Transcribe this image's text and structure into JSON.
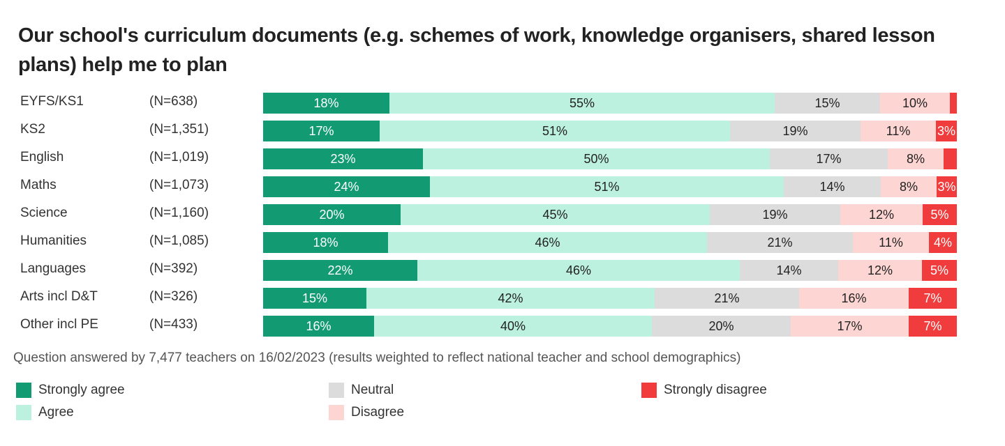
{
  "title": "Our school's curriculum documents (e.g. schemes of work, knowledge organisers, shared lesson plans) help me to plan",
  "note": "Question answered by 7,477 teachers on 16/02/2023 (results weighted to reflect national teacher and school demographics)",
  "colors": {
    "strongly_agree": "#129b73",
    "agree": "#bcf0df",
    "neutral": "#dcdcdc",
    "disagree": "#fdd5d3",
    "strongly_disagree": "#f03c3c"
  },
  "chart_data": {
    "type": "bar",
    "orientation": "horizontal-stacked-100",
    "title": "Our school's curriculum documents (e.g. schemes of work, knowledge organisers, shared lesson plans) help me to plan",
    "categories": [
      "EYFS/KS1",
      "KS2",
      "English",
      "Maths",
      "Science",
      "Humanities",
      "Languages",
      "Arts incl D&T",
      "Other incl PE"
    ],
    "n_labels": [
      "(N=638)",
      "(N=1,351)",
      "(N=1,019)",
      "(N=1,073)",
      "(N=1,160)",
      "(N=1,085)",
      "(N=392)",
      "(N=326)",
      "(N=433)"
    ],
    "series": [
      {
        "name": "Strongly agree",
        "key": "strongly_agree",
        "values": [
          18,
          17,
          23,
          24,
          20,
          18,
          22,
          15,
          16
        ],
        "labels": [
          "18%",
          "17%",
          "23%",
          "24%",
          "20%",
          "18%",
          "22%",
          "15%",
          "16%"
        ]
      },
      {
        "name": "Agree",
        "key": "agree",
        "values": [
          55,
          51,
          50,
          51,
          45,
          46,
          46,
          42,
          40
        ],
        "labels": [
          "55%",
          "51%",
          "50%",
          "51%",
          "45%",
          "46%",
          "46%",
          "42%",
          "40%"
        ]
      },
      {
        "name": "Neutral",
        "key": "neutral",
        "values": [
          15,
          19,
          17,
          14,
          19,
          21,
          14,
          21,
          20
        ],
        "labels": [
          "15%",
          "19%",
          "17%",
          "14%",
          "19%",
          "21%",
          "14%",
          "21%",
          "20%"
        ]
      },
      {
        "name": "Disagree",
        "key": "disagree",
        "values": [
          10,
          11,
          8,
          8,
          12,
          11,
          12,
          16,
          17
        ],
        "labels": [
          "10%",
          "11%",
          "8%",
          "8%",
          "12%",
          "11%",
          "12%",
          "16%",
          "17%"
        ]
      },
      {
        "name": "Strongly disagree",
        "key": "strongly_disagree",
        "values": [
          1,
          3,
          2,
          3,
          5,
          4,
          5,
          7,
          7
        ],
        "labels": [
          "",
          "3%",
          "",
          "3%",
          "5%",
          "4%",
          "5%",
          "7%",
          "7%"
        ]
      }
    ],
    "xlim": [
      0,
      100
    ],
    "grid": false,
    "legend_placement": "bottom"
  }
}
